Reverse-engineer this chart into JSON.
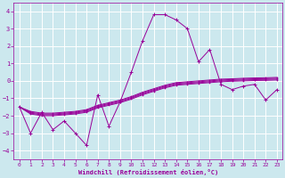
{
  "xlabel": "Windchill (Refroidissement éolien,°C)",
  "background_color": "#cce8ee",
  "grid_color": "#ffffff",
  "line_color": "#990099",
  "ylim": [
    -4.5,
    4.5
  ],
  "xlim": [
    -0.5,
    23.5
  ],
  "yticks": [
    -4,
    -3,
    -2,
    -1,
    0,
    1,
    2,
    3,
    4
  ],
  "xticks": [
    0,
    1,
    2,
    3,
    4,
    5,
    6,
    7,
    8,
    9,
    10,
    11,
    12,
    13,
    14,
    15,
    16,
    17,
    18,
    19,
    20,
    21,
    22,
    23
  ],
  "series": [
    [
      -1.5,
      -3.0,
      -1.8,
      -2.8,
      -2.3,
      -3.0,
      -3.7,
      -0.8,
      -2.6,
      -1.2,
      0.5,
      2.3,
      3.8,
      3.8,
      3.5,
      3.0,
      1.1,
      1.8,
      -0.2,
      -0.5,
      -0.3,
      -0.2,
      -1.1,
      -0.5
    ],
    [
      -1.5,
      -1.75,
      -1.85,
      -1.85,
      -1.8,
      -1.75,
      -1.65,
      -1.4,
      -1.25,
      -1.1,
      -0.9,
      -0.65,
      -0.45,
      -0.25,
      -0.1,
      -0.05,
      0.0,
      0.05,
      0.1,
      0.12,
      0.15,
      0.17,
      0.18,
      0.2
    ],
    [
      -1.5,
      -1.8,
      -1.9,
      -1.9,
      -1.85,
      -1.8,
      -1.7,
      -1.45,
      -1.3,
      -1.15,
      -0.95,
      -0.7,
      -0.5,
      -0.3,
      -0.15,
      -0.1,
      -0.05,
      0.0,
      0.05,
      0.08,
      0.1,
      0.12,
      0.13,
      0.15
    ],
    [
      -1.5,
      -1.85,
      -1.95,
      -1.95,
      -1.9,
      -1.85,
      -1.75,
      -1.5,
      -1.35,
      -1.2,
      -1.0,
      -0.75,
      -0.55,
      -0.35,
      -0.2,
      -0.15,
      -0.1,
      -0.05,
      0.0,
      0.02,
      0.05,
      0.07,
      0.08,
      0.1
    ],
    [
      -1.5,
      -1.9,
      -2.0,
      -2.0,
      -1.95,
      -1.9,
      -1.8,
      -1.55,
      -1.4,
      -1.25,
      -1.05,
      -0.8,
      -0.6,
      -0.4,
      -0.25,
      -0.2,
      -0.15,
      -0.1,
      -0.05,
      -0.02,
      0.0,
      0.02,
      0.03,
      0.05
    ]
  ]
}
